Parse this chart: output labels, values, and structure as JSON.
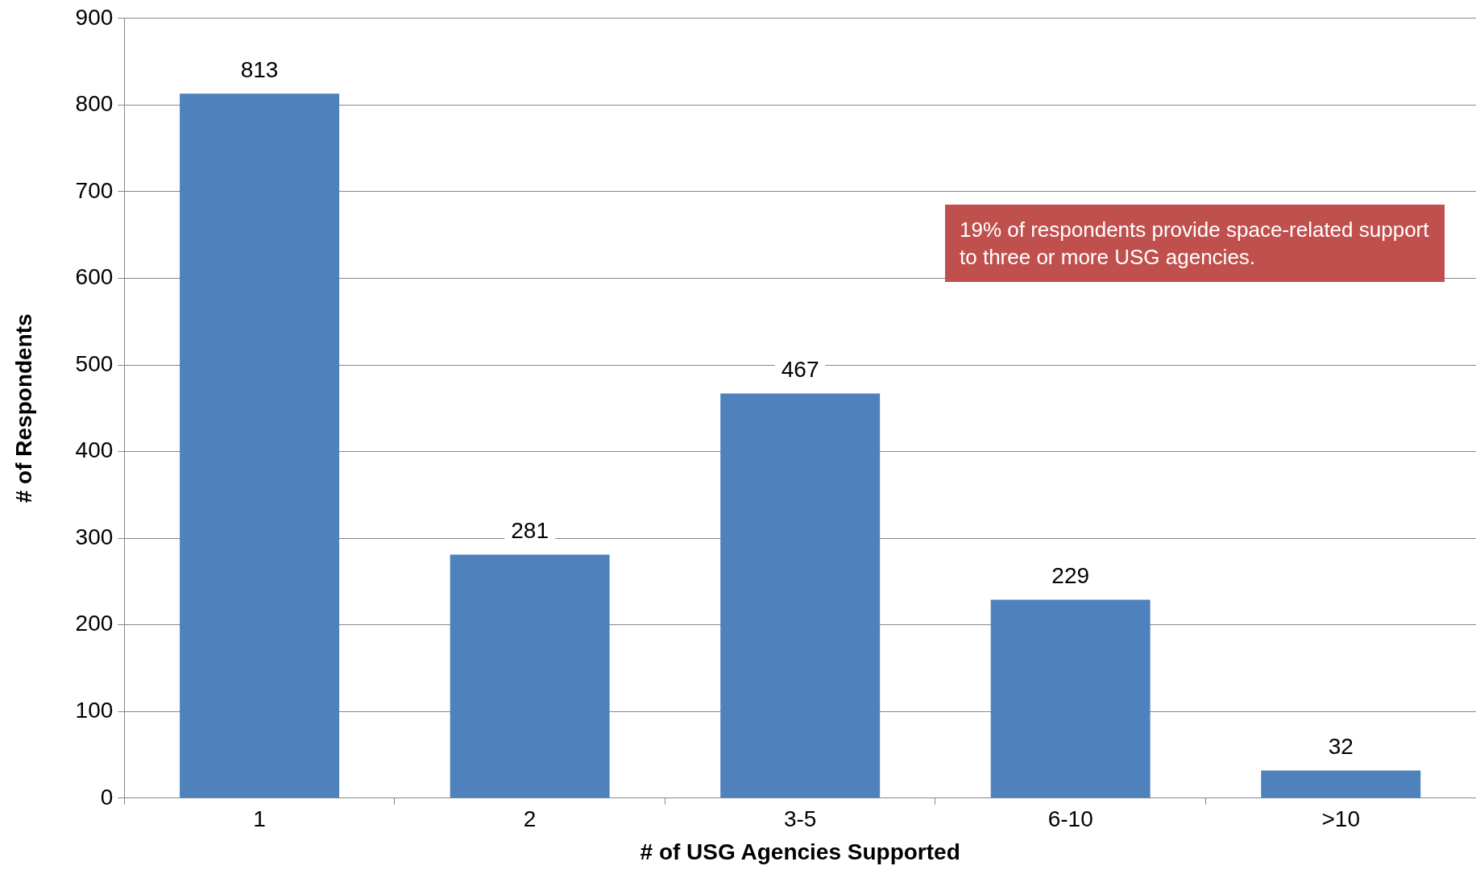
{
  "chart_data": {
    "type": "bar",
    "xlabel": "# of USG Agencies Supported",
    "ylabel": "# of Respondents",
    "categories": [
      "1",
      "2",
      "3-5",
      "6-10",
      ">10"
    ],
    "values": [
      813,
      281,
      467,
      229,
      32
    ],
    "color": "#4f81bd",
    "ylim": [
      0,
      900
    ],
    "yticks": [
      0,
      100,
      200,
      300,
      400,
      500,
      600,
      700,
      800,
      900
    ],
    "grid": "y",
    "legend": false,
    "data_labels": true,
    "annotations": [
      "19% of respondents provide space-related support to three or more USG agencies."
    ]
  }
}
